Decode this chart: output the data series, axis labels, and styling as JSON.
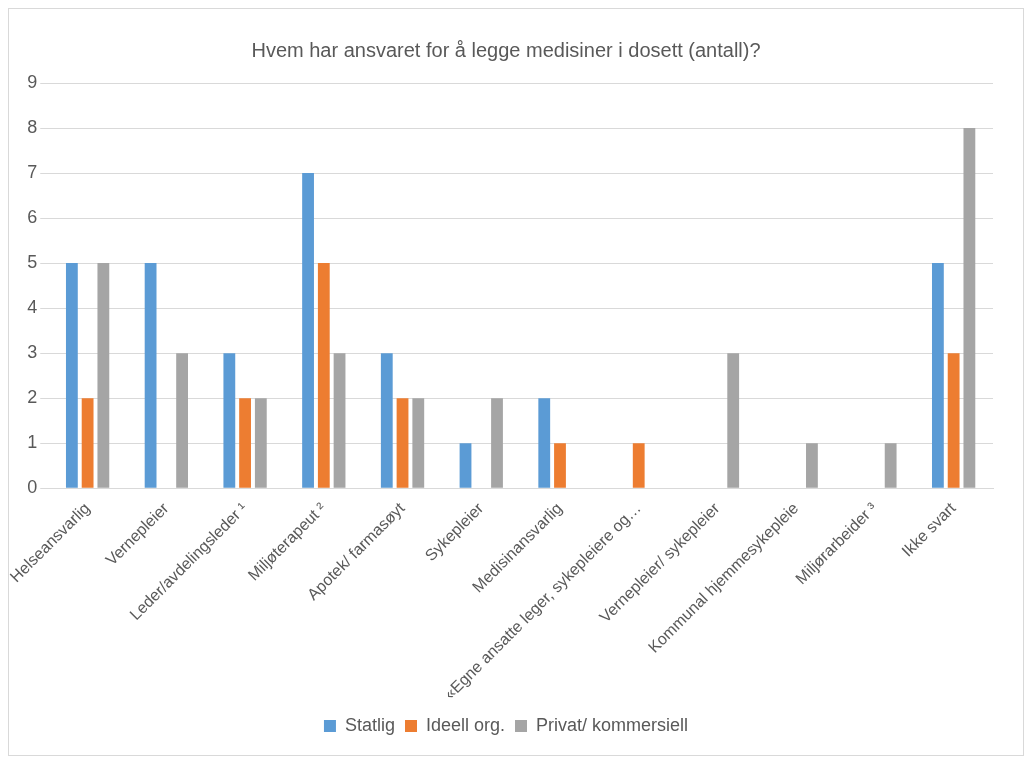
{
  "chart_data": {
    "type": "bar",
    "title": "Hvem har ansvaret for å legge medisiner i dosett (antall)?",
    "categories": [
      "Helseansvarlig",
      "Vernepleier",
      "Leder/avdelingsleder ¹",
      "Miljøterapeut ²",
      "Apotek/ farmasøyt",
      "Sykepleier",
      "Medisinansvarlig",
      "«Egne ansatte leger, sykepleiere og…",
      "Vernepleier/ sykepleier",
      "Kommunal hjemmesykepleie",
      "Miljørarbeider ³",
      "Ikke svart"
    ],
    "series": [
      {
        "name": "Statlig",
        "color": "#5b9bd5",
        "values": [
          5,
          5,
          3,
          7,
          3,
          1,
          2,
          0,
          0,
          0,
          0,
          5
        ]
      },
      {
        "name": "Ideell org.",
        "color": "#ed7d31",
        "values": [
          2,
          0,
          2,
          5,
          2,
          0,
          1,
          1,
          0,
          0,
          0,
          3
        ]
      },
      {
        "name": "Privat/ kommersiell",
        "color": "#a5a5a5",
        "values": [
          5,
          3,
          2,
          3,
          2,
          2,
          0,
          0,
          3,
          1,
          1,
          8
        ]
      }
    ],
    "ylim": [
      0,
      9
    ],
    "yticks": [
      0,
      1,
      2,
      3,
      4,
      5,
      6,
      7,
      8,
      9
    ],
    "grid": "y",
    "legend": "bottom"
  }
}
